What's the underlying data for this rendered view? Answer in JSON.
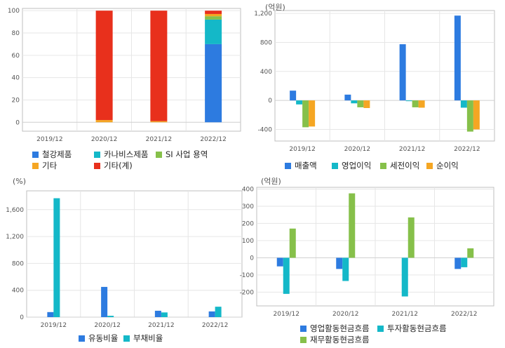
{
  "chart_data": [
    {
      "type": "bar",
      "stacked": true,
      "title": "",
      "ylabel_unit": "",
      "categories": [
        "2019/12",
        "2020/12",
        "2021/12",
        "2022/12"
      ],
      "ylim": [
        -8,
        102
      ],
      "yticks": [
        0,
        20,
        40,
        60,
        80,
        100
      ],
      "ytick_labels": [
        "0",
        "20",
        "40",
        "60",
        "80",
        "100"
      ],
      "series": [
        {
          "name": "철강제품",
          "color": "#2d7be0",
          "values": [
            0,
            0,
            0,
            70
          ]
        },
        {
          "name": "카나비스제품",
          "color": "#14b8c8",
          "values": [
            0,
            0,
            0,
            22
          ]
        },
        {
          "name": "SI 사업 용역",
          "color": "#86c04a",
          "values": [
            0,
            0,
            0,
            3
          ]
        },
        {
          "name": "기타",
          "color": "#f5a623",
          "values": [
            0,
            2,
            1,
            2
          ]
        },
        {
          "name": "기타(계)",
          "color": "#e8301c",
          "values": [
            0,
            98,
            99,
            3
          ]
        }
      ],
      "legend_position": "bottom",
      "grid": true
    },
    {
      "type": "bar",
      "title": "",
      "ylabel_unit": "(억원)",
      "categories": [
        "2019/12",
        "2020/12",
        "2021/12",
        "2022/12"
      ],
      "ylim": [
        -560,
        1240
      ],
      "yticks": [
        -400,
        0,
        400,
        800,
        1200
      ],
      "ytick_labels": [
        "-400",
        "0",
        "400",
        "800",
        "1,200"
      ],
      "series": [
        {
          "name": "매출액",
          "color": "#2d7be0",
          "values": [
            135,
            80,
            775,
            1170
          ]
        },
        {
          "name": "영업이익",
          "color": "#14b8c8",
          "values": [
            -55,
            -40,
            -10,
            -100
          ]
        },
        {
          "name": "세전이익",
          "color": "#86c04a",
          "values": [
            -370,
            -95,
            -95,
            -430
          ]
        },
        {
          "name": "순이익",
          "color": "#f5a623",
          "values": [
            -360,
            -105,
            -100,
            -400
          ]
        }
      ],
      "legend_position": "bottom",
      "grid": true
    },
    {
      "type": "bar",
      "title": "",
      "ylabel_unit": "(%)",
      "categories": [
        "2019/12",
        "2020/12",
        "2021/12",
        "2022/12"
      ],
      "ylim": [
        0,
        1880
      ],
      "yticks": [
        0,
        400,
        800,
        1200,
        1600
      ],
      "ytick_labels": [
        "0",
        "400",
        "800",
        "1,200",
        "1,600"
      ],
      "series": [
        {
          "name": "유동비율",
          "color": "#2d7be0",
          "values": [
            75,
            450,
            95,
            85
          ]
        },
        {
          "name": "부채비율",
          "color": "#14b8c8",
          "values": [
            1770,
            20,
            70,
            155
          ]
        }
      ],
      "legend_position": "bottom",
      "grid": true
    },
    {
      "type": "bar",
      "title": "",
      "ylabel_unit": "(억원)",
      "categories": [
        "2019/12",
        "2020/12",
        "2021/12",
        "2022/12"
      ],
      "ylim": [
        -280,
        410
      ],
      "yticks": [
        -200,
        -100,
        0,
        100,
        200,
        300,
        400
      ],
      "ytick_labels": [
        "-200",
        "-100",
        "0",
        "100",
        "200",
        "300",
        "400"
      ],
      "series": [
        {
          "name": "영업활동현금흐름",
          "color": "#2d7be0",
          "values": [
            -50,
            -65,
            0,
            -65
          ]
        },
        {
          "name": "투자활동현금흐름",
          "color": "#14b8c8",
          "values": [
            -210,
            -135,
            -225,
            -55
          ]
        },
        {
          "name": "재무활동현금흐름",
          "color": "#86c04a",
          "values": [
            170,
            375,
            235,
            55
          ]
        }
      ],
      "legend_position": "bottom",
      "grid": true
    }
  ]
}
